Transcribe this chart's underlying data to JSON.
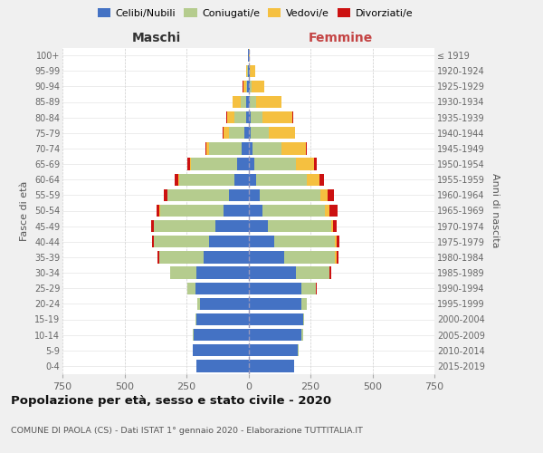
{
  "age_groups": [
    "0-4",
    "5-9",
    "10-14",
    "15-19",
    "20-24",
    "25-29",
    "30-34",
    "35-39",
    "40-44",
    "45-49",
    "50-54",
    "55-59",
    "60-64",
    "65-69",
    "70-74",
    "75-79",
    "80-84",
    "85-89",
    "90-94",
    "95-99",
    "100+"
  ],
  "birth_years": [
    "2015-2019",
    "2010-2014",
    "2005-2009",
    "2000-2004",
    "1995-1999",
    "1990-1994",
    "1985-1989",
    "1980-1984",
    "1975-1979",
    "1970-1974",
    "1965-1969",
    "1960-1964",
    "1955-1959",
    "1950-1954",
    "1945-1949",
    "1940-1944",
    "1935-1939",
    "1930-1934",
    "1925-1929",
    "1920-1924",
    "≤ 1919"
  ],
  "colors": {
    "celibi": "#4472C4",
    "coniugati": "#b5cc8e",
    "vedovi": "#f5c040",
    "divorziati": "#cc1111"
  },
  "males": {
    "celibi": [
      210,
      225,
      220,
      210,
      195,
      215,
      210,
      180,
      160,
      135,
      100,
      80,
      55,
      45,
      28,
      15,
      10,
      8,
      4,
      3,
      2
    ],
    "coniugati": [
      0,
      0,
      3,
      2,
      10,
      32,
      105,
      180,
      220,
      245,
      255,
      245,
      225,
      185,
      130,
      65,
      45,
      22,
      5,
      2,
      0
    ],
    "vedovi": [
      0,
      0,
      0,
      0,
      0,
      0,
      0,
      0,
      0,
      0,
      3,
      3,
      4,
      5,
      12,
      22,
      32,
      35,
      12,
      5,
      0
    ],
    "divorziati": [
      0,
      0,
      0,
      0,
      0,
      0,
      2,
      5,
      8,
      12,
      12,
      12,
      12,
      10,
      5,
      2,
      2,
      0,
      2,
      0,
      0
    ]
  },
  "females": {
    "nubili": [
      185,
      200,
      215,
      220,
      215,
      215,
      190,
      145,
      105,
      78,
      55,
      45,
      30,
      25,
      15,
      10,
      8,
      5,
      4,
      4,
      2
    ],
    "coniugate": [
      0,
      2,
      5,
      5,
      22,
      58,
      135,
      205,
      245,
      255,
      255,
      245,
      205,
      168,
      118,
      72,
      50,
      25,
      10,
      2,
      0
    ],
    "vedove": [
      0,
      0,
      0,
      0,
      0,
      0,
      3,
      5,
      5,
      10,
      16,
      28,
      52,
      72,
      98,
      105,
      118,
      105,
      50,
      22,
      2
    ],
    "divorziate": [
      0,
      0,
      0,
      0,
      0,
      2,
      5,
      8,
      12,
      12,
      32,
      28,
      16,
      12,
      5,
      2,
      3,
      0,
      0,
      0,
      0
    ]
  },
  "xlim": 750,
  "title": "Popolazione per età, sesso e stato civile - 2020",
  "subtitle": "COMUNE DI PAOLA (CS) - Dati ISTAT 1° gennaio 2020 - Elaborazione TUTTITALIA.IT",
  "xlabel_maschi": "Maschi",
  "xlabel_femmine": "Femmine",
  "ylabel_left": "Fasce di età",
  "ylabel_right": "Anni di nascita",
  "background_color": "#f0f0f0",
  "plot_bg": "#ffffff",
  "legend_labels": [
    "Celibi/Nubili",
    "Coniugati/e",
    "Vedovi/e",
    "Divorziati/e"
  ]
}
